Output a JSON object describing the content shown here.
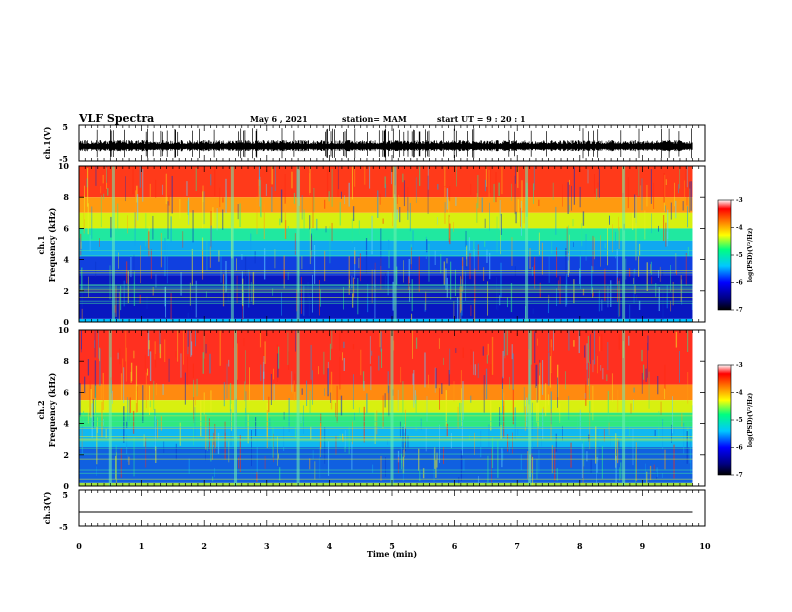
{
  "header": {
    "title": "VLF Spectra",
    "date": "May 6  , 2021",
    "station": "station= MAM",
    "start": "start  UT  =   9  : 20 : 1"
  },
  "chart_data": [
    {
      "type": "line",
      "name": "ch1-waveform",
      "ylabel": "ch.1(V)",
      "ytick_labels": [
        "5",
        "-5"
      ],
      "ylim": [
        -5,
        5
      ],
      "xlim": [
        0,
        10
      ]
    },
    {
      "type": "heatmap",
      "name": "ch1-spectrogram",
      "ylabel": "ch.1\nFrequency  (kHz)",
      "ytick_labels": [
        "0",
        "2",
        "4",
        "6",
        "8",
        "10"
      ],
      "ylim": [
        0,
        10
      ],
      "xlim": [
        0,
        10
      ],
      "colorbar": {
        "label": "log(PSD)(V²/Hz)",
        "tick_labels": [
          "-3",
          "-4",
          "-5",
          "-6",
          "-7"
        ],
        "range": [
          -7,
          -3
        ],
        "colors": [
          "#000000",
          "#000080",
          "#0000ff",
          "#00c8ff",
          "#00ff80",
          "#ffff00",
          "#ff8000",
          "#ff0000",
          "#ffffff"
        ]
      },
      "bands": [
        {
          "freq_khz": [
            8.0,
            10.0
          ],
          "color": "#ff3a1a"
        },
        {
          "freq_khz": [
            7.0,
            8.0
          ],
          "color": "#ff9a10"
        },
        {
          "freq_khz": [
            6.0,
            7.0
          ],
          "color": "#d8f010"
        },
        {
          "freq_khz": [
            5.2,
            6.0
          ],
          "color": "#20e8a0"
        },
        {
          "freq_khz": [
            4.2,
            5.2
          ],
          "color": "#10a8f0"
        },
        {
          "freq_khz": [
            3.0,
            4.2
          ],
          "color": "#1040e0"
        },
        {
          "freq_khz": [
            0.2,
            3.0
          ],
          "color": "#0818c0"
        },
        {
          "freq_khz": [
            0.0,
            0.2
          ],
          "color": "#00c0ff"
        }
      ],
      "bright_events_min": [
        0.55,
        2.45,
        3.5,
        5.05,
        7.15,
        8.7
      ]
    },
    {
      "type": "heatmap",
      "name": "ch2-spectrogram",
      "ylabel": "ch.2\nFrequency  (kHz)",
      "ytick_labels": [
        "0",
        "2",
        "4",
        "6",
        "8",
        "10"
      ],
      "ylim": [
        0,
        10
      ],
      "xlim": [
        0,
        10
      ],
      "colorbar": {
        "label": "log(PSD)(V²/Hz)",
        "tick_labels": [
          "-3",
          "-4",
          "-5",
          "-6",
          "-7"
        ],
        "range": [
          -7,
          -3
        ],
        "colors": [
          "#000000",
          "#000080",
          "#0000ff",
          "#00c8ff",
          "#00ff80",
          "#ffff00",
          "#ff8000",
          "#ff0000",
          "#ffffff"
        ]
      },
      "bands": [
        {
          "freq_khz": [
            6.5,
            10.0
          ],
          "color": "#ff3020"
        },
        {
          "freq_khz": [
            5.5,
            6.5
          ],
          "color": "#ff8a10"
        },
        {
          "freq_khz": [
            4.7,
            5.5
          ],
          "color": "#d8f010"
        },
        {
          "freq_khz": [
            3.8,
            4.7
          ],
          "color": "#30e880"
        },
        {
          "freq_khz": [
            2.5,
            3.8
          ],
          "color": "#10b8f0"
        },
        {
          "freq_khz": [
            0.2,
            2.5
          ],
          "color": "#1060e0"
        },
        {
          "freq_khz": [
            0.0,
            0.2
          ],
          "color": "#a0e040"
        }
      ],
      "bright_events_min": [
        0.5,
        2.5,
        3.5,
        5.0,
        7.2,
        8.7
      ]
    },
    {
      "type": "line",
      "name": "ch3-waveform",
      "ylabel": "ch.3(V)",
      "ytick_labels": [
        "5",
        "-5"
      ],
      "ylim": [
        -5,
        5
      ],
      "xlim": [
        0,
        10
      ],
      "level_v": -1.4
    }
  ],
  "xaxis": {
    "label": "Time  (min)",
    "tick_labels": [
      "0",
      "1",
      "2",
      "3",
      "4",
      "5",
      "6",
      "7",
      "8",
      "9",
      "10"
    ]
  }
}
